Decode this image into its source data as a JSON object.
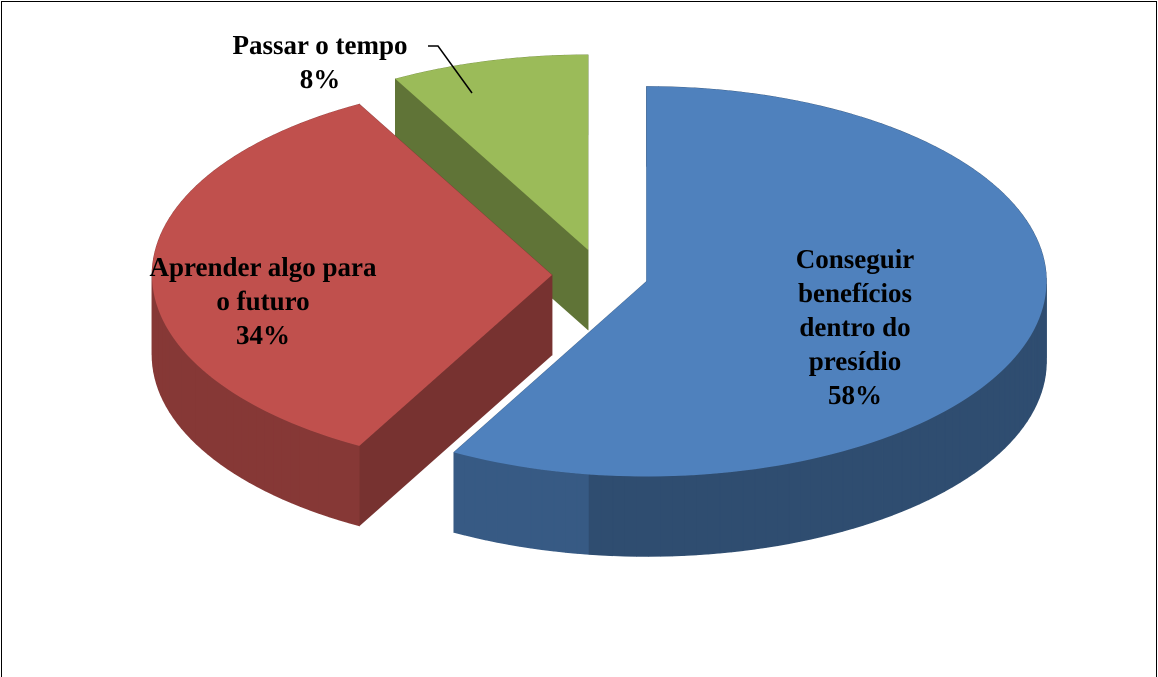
{
  "chart_data": {
    "type": "pie",
    "categories": [
      "Conseguir benefícios dentro do presídio",
      "Aprender algo para o futuro",
      "Passar o tempo"
    ],
    "values": [
      58,
      34,
      8
    ],
    "value_labels": [
      "58%",
      "34%",
      "8%"
    ],
    "colors": [
      "#4f81bd",
      "#c0504d",
      "#9bbb59"
    ]
  }
}
